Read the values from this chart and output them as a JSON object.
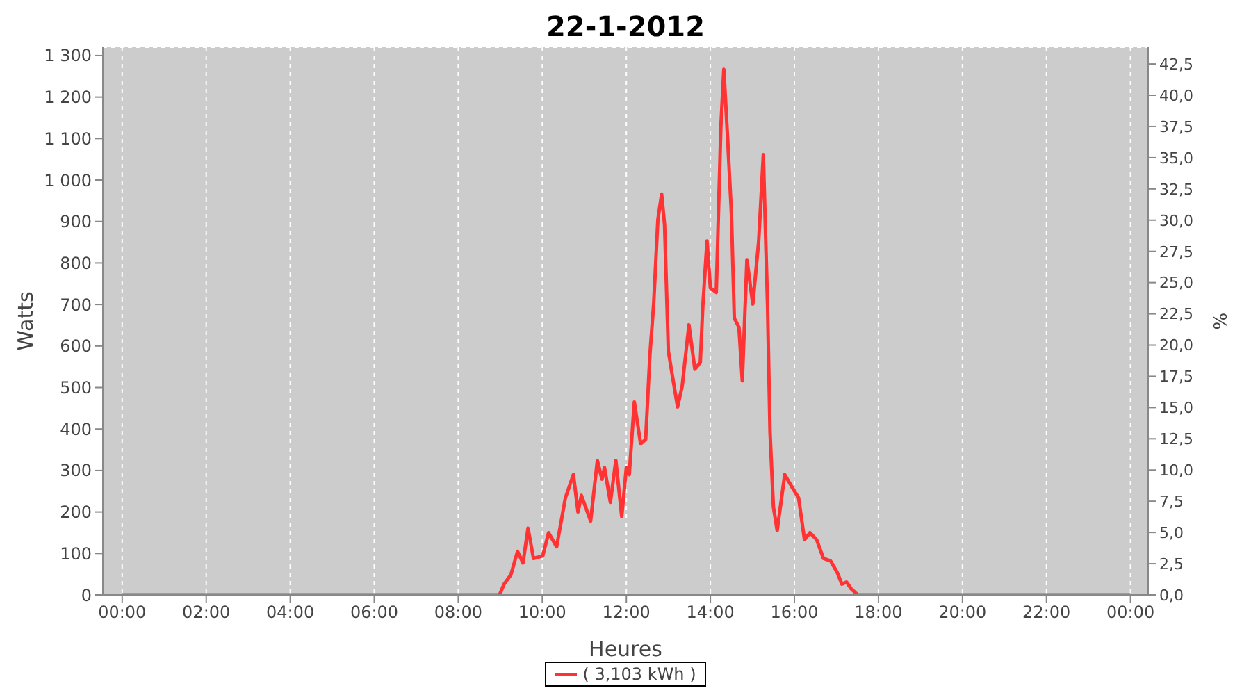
{
  "chart_data": {
    "type": "line",
    "title": "22-1-2012",
    "xlabel": "Heures",
    "ylabel": "Watts",
    "y2label": "%",
    "x": [
      0,
      8.98,
      9.09,
      9.25,
      9.41,
      9.54,
      9.66,
      9.79,
      10.01,
      10.15,
      10.34,
      10.55,
      10.74,
      10.85,
      10.93,
      11.15,
      11.31,
      11.42,
      11.48,
      11.62,
      11.75,
      11.89,
      12.0,
      12.07,
      12.19,
      12.34,
      12.46,
      12.56,
      12.65,
      12.75,
      12.84,
      12.91,
      13.0,
      13.08,
      13.22,
      13.33,
      13.49,
      13.63,
      13.76,
      13.82,
      13.92,
      14.0,
      14.14,
      14.25,
      14.32,
      14.41,
      14.5,
      14.57,
      14.68,
      14.76,
      14.87,
      15.01,
      15.15,
      15.26,
      15.36,
      15.42,
      15.5,
      15.59,
      15.77,
      15.93,
      16.1,
      16.24,
      16.37,
      16.53,
      16.69,
      16.86,
      17.02,
      17.13,
      17.24,
      17.35,
      17.51,
      24
    ],
    "series": [
      {
        "name": "( 3,103 kWh )",
        "color": "#ff3333",
        "values": [
          0,
          0,
          26,
          48,
          105,
          77,
          161,
          88,
          94,
          150,
          116,
          234,
          290,
          200,
          240,
          178,
          324,
          279,
          307,
          223,
          324,
          189,
          307,
          290,
          465,
          364,
          375,
          577,
          701,
          904,
          966,
          892,
          588,
          538,
          453,
          504,
          651,
          544,
          560,
          695,
          853,
          740,
          729,
          1129,
          1267,
          1101,
          921,
          667,
          645,
          516,
          808,
          701,
          853,
          1061,
          701,
          392,
          212,
          155,
          290,
          262,
          234,
          133,
          150,
          133,
          88,
          82,
          54,
          26,
          31,
          15,
          0,
          0
        ]
      }
    ],
    "xlim": [
      -0.46,
      24.42
    ],
    "xticks": [
      {
        "value": 0,
        "label": "00:00"
      },
      {
        "value": 2,
        "label": "02:00"
      },
      {
        "value": 4,
        "label": "04:00"
      },
      {
        "value": 6,
        "label": "06:00"
      },
      {
        "value": 8,
        "label": "08:00"
      },
      {
        "value": 10,
        "label": "10:00"
      },
      {
        "value": 12,
        "label": "12:00"
      },
      {
        "value": 14,
        "label": "14:00"
      },
      {
        "value": 16,
        "label": "16:00"
      },
      {
        "value": 18,
        "label": "18:00"
      },
      {
        "value": 20,
        "label": "20:00"
      },
      {
        "value": 22,
        "label": "22:00"
      },
      {
        "value": 24,
        "label": "00:00"
      }
    ],
    "ylim": [
      0,
      1320
    ],
    "yticks": [
      0,
      100,
      200,
      300,
      400,
      500,
      600,
      700,
      800,
      900,
      {
        "value": 1000,
        "label": "1 000"
      },
      {
        "value": 1100,
        "label": "1 100"
      },
      {
        "value": 1200,
        "label": "1 200"
      },
      {
        "value": 1300,
        "label": "1 300"
      }
    ],
    "y2lim": [
      0,
      43.84
    ],
    "y2ticks": [
      {
        "value": 0,
        "label": "0,0"
      },
      {
        "value": 2.5,
        "label": "2,5"
      },
      {
        "value": 5,
        "label": "5,0"
      },
      {
        "value": 7.5,
        "label": "7,5"
      },
      {
        "value": 10,
        "label": "10,0"
      },
      {
        "value": 12.5,
        "label": "12,5"
      },
      {
        "value": 15,
        "label": "15,0"
      },
      {
        "value": 17.5,
        "label": "17,5"
      },
      {
        "value": 20,
        "label": "20,0"
      },
      {
        "value": 22.5,
        "label": "22,5"
      },
      {
        "value": 25,
        "label": "25,0"
      },
      {
        "value": 27.5,
        "label": "27,5"
      },
      {
        "value": 30,
        "label": "30,0"
      },
      {
        "value": 32.5,
        "label": "32,5"
      },
      {
        "value": 35,
        "label": "35,0"
      },
      {
        "value": 37.5,
        "label": "37,5"
      },
      {
        "value": 40,
        "label": "40,0"
      },
      {
        "value": 42.5,
        "label": "42,5"
      }
    ],
    "grid": true,
    "legend": "bottom",
    "marker": "none",
    "line_style": "solid"
  }
}
